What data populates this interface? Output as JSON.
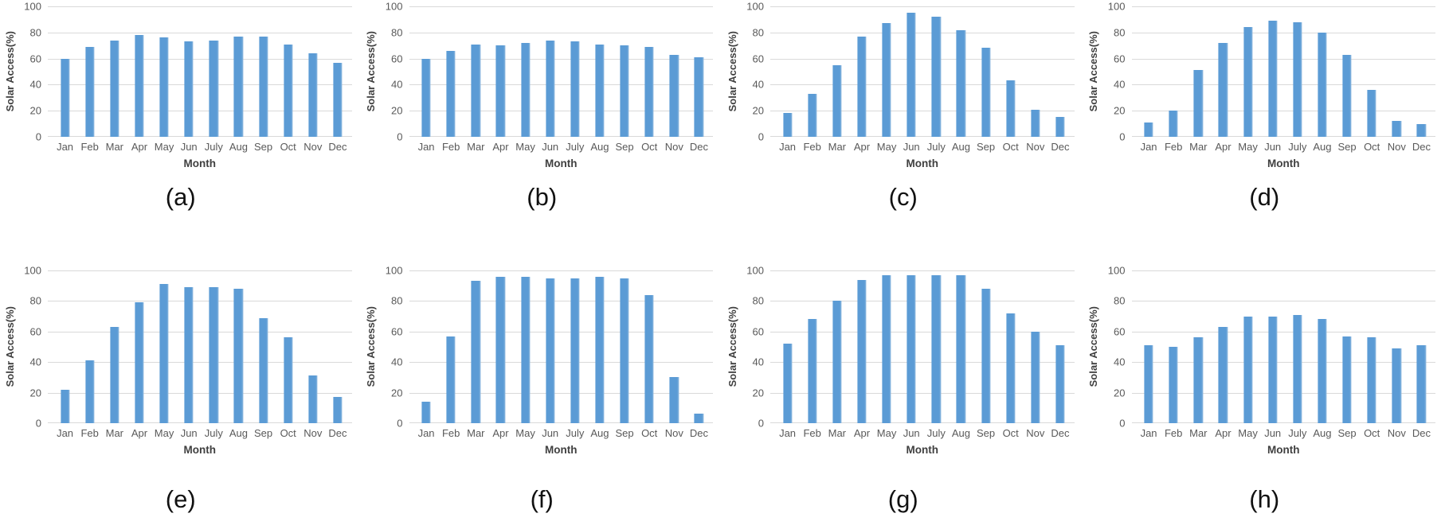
{
  "chart_data": {
    "type": "bar",
    "layout": "2 rows x 4 columns",
    "categories": [
      "Jan",
      "Feb",
      "Mar",
      "Apr",
      "May",
      "Jun",
      "July",
      "Aug",
      "Sep",
      "Oct",
      "Nov",
      "Dec"
    ],
    "xlabel": "Month",
    "ylabel": "Solar Access(%)",
    "ylim": [
      0,
      100
    ],
    "ytick_labels": [
      "100",
      "80",
      "60",
      "40",
      "20",
      "0"
    ],
    "grid": true,
    "legend_position": "none",
    "bar_color": "#5B9BD5",
    "gridline_color": "#D9D9D9",
    "tick_text_color": "#595959",
    "axis_title_color": "#3F3F3F",
    "charts": [
      {
        "caption": "(a)",
        "values": [
          60,
          69,
          74,
          78,
          76,
          73,
          74,
          77,
          77,
          71,
          64,
          57
        ]
      },
      {
        "caption": "(b)",
        "values": [
          60,
          66,
          71,
          70,
          72,
          74,
          73,
          71,
          70,
          69,
          63,
          61
        ]
      },
      {
        "caption": "(c)",
        "values": [
          18,
          33,
          55,
          77,
          87,
          95,
          92,
          82,
          68,
          43,
          21,
          15
        ]
      },
      {
        "caption": "(d)",
        "values": [
          11,
          20,
          51,
          72,
          84,
          89,
          88,
          80,
          63,
          36,
          12,
          10
        ]
      },
      {
        "caption": "(e)",
        "values": [
          22,
          41,
          63,
          79,
          91,
          89,
          89,
          88,
          69,
          56,
          31,
          17
        ]
      },
      {
        "caption": "(f)",
        "values": [
          14,
          57,
          93,
          96,
          96,
          95,
          95,
          96,
          95,
          84,
          30,
          6
        ]
      },
      {
        "caption": "(g)",
        "values": [
          52,
          68,
          80,
          94,
          97,
          97,
          97,
          97,
          88,
          72,
          60,
          51
        ]
      },
      {
        "caption": "(h)",
        "values": [
          51,
          50,
          56,
          63,
          70,
          70,
          71,
          68,
          57,
          56,
          49,
          51
        ]
      }
    ]
  }
}
